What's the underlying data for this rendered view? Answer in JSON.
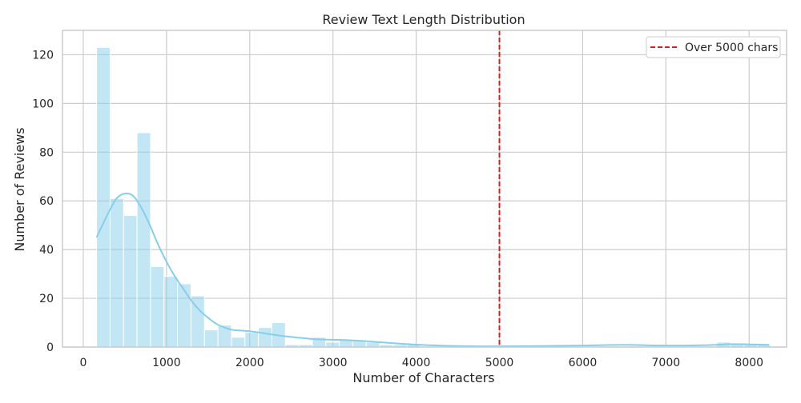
{
  "chart_data": {
    "type": "bar",
    "title": "Review Text Length Distribution",
    "xlabel": "Number of Characters",
    "ylabel": "Number of Reviews",
    "xlim": [
      -250,
      8450
    ],
    "ylim": [
      0,
      130
    ],
    "xticks": [
      0,
      1000,
      2000,
      3000,
      4000,
      5000,
      6000,
      7000,
      8000
    ],
    "yticks": [
      0,
      20,
      40,
      60,
      80,
      100,
      120
    ],
    "grid": true,
    "bin_width": 162,
    "bins": [
      {
        "x0": 160,
        "count": 123
      },
      {
        "x0": 322,
        "count": 61
      },
      {
        "x0": 484,
        "count": 54
      },
      {
        "x0": 646,
        "count": 88
      },
      {
        "x0": 808,
        "count": 33
      },
      {
        "x0": 970,
        "count": 29
      },
      {
        "x0": 1132,
        "count": 26
      },
      {
        "x0": 1294,
        "count": 21
      },
      {
        "x0": 1456,
        "count": 7
      },
      {
        "x0": 1618,
        "count": 9
      },
      {
        "x0": 1780,
        "count": 4
      },
      {
        "x0": 1942,
        "count": 6
      },
      {
        "x0": 2104,
        "count": 8
      },
      {
        "x0": 2266,
        "count": 10
      },
      {
        "x0": 2428,
        "count": 1
      },
      {
        "x0": 2590,
        "count": 1
      },
      {
        "x0": 2752,
        "count": 4
      },
      {
        "x0": 2914,
        "count": 2
      },
      {
        "x0": 3076,
        "count": 3
      },
      {
        "x0": 3238,
        "count": 3
      },
      {
        "x0": 3400,
        "count": 2
      },
      {
        "x0": 3562,
        "count": 1
      },
      {
        "x0": 3724,
        "count": 1
      },
      {
        "x0": 3886,
        "count": 1
      },
      {
        "x0": 7612,
        "count": 2
      },
      {
        "x0": 7774,
        "count": 1
      },
      {
        "x0": 7936,
        "count": 1
      },
      {
        "x0": 8098,
        "count": 1
      }
    ],
    "kde": {
      "x": [
        160,
        300,
        400,
        500,
        600,
        700,
        800,
        900,
        1000,
        1100,
        1200,
        1300,
        1400,
        1500,
        1600,
        1700,
        1800,
        2000,
        2200,
        2400,
        2600,
        2800,
        3000,
        3200,
        3400,
        3600,
        3800,
        4000,
        4200,
        4500,
        4800,
        5000,
        5500,
        6000,
        6500,
        7000,
        7500,
        7800,
        8000,
        8240
      ],
      "y": [
        45,
        55,
        61,
        63,
        62,
        57,
        50,
        42,
        35,
        29,
        24,
        19,
        15,
        12,
        9.5,
        8,
        7,
        6.5,
        5.5,
        4.5,
        3.8,
        3.2,
        3,
        2.8,
        2.4,
        1.9,
        1.4,
        1,
        0.7,
        0.4,
        0.3,
        0.3,
        0.4,
        0.6,
        0.9,
        0.6,
        0.8,
        1.2,
        1.1,
        0.9
      ]
    },
    "threshold": {
      "x": 5000,
      "label": "Over 5000 chars",
      "color": "#dd1c1c"
    },
    "bar_color": "#87ceeb",
    "legend_position": "top-right"
  }
}
